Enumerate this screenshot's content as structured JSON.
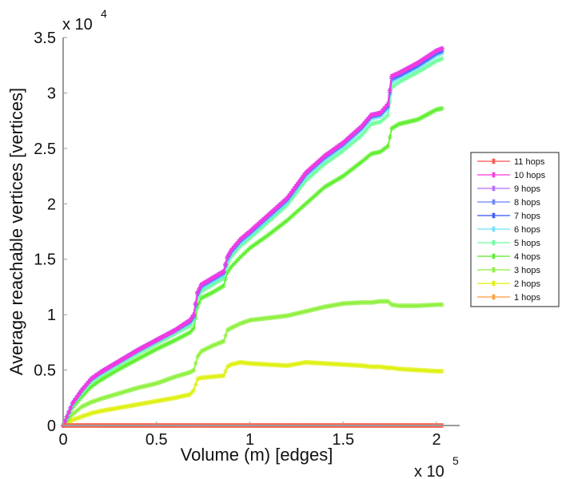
{
  "chart_data": {
    "type": "line",
    "title": "",
    "xlabel": "Volume (m) [edges]",
    "ylabel": "Average reachable vertices [vertices]",
    "x_multiplier_label": "x 10",
    "x_multiplier_exp": "5",
    "y_multiplier_label": "x 10",
    "y_multiplier_exp": "4",
    "xlim": [
      0,
      2.1
    ],
    "ylim": [
      0,
      3.5
    ],
    "xticks": [
      0,
      0.5,
      1,
      1.5,
      2
    ],
    "xtick_labels": [
      "0",
      "0.5",
      "1",
      "1.5",
      "2"
    ],
    "yticks": [
      0,
      0.5,
      1,
      1.5,
      2,
      2.5,
      3,
      3.5
    ],
    "ytick_labels": [
      "0",
      "0.5",
      "1",
      "1.5",
      "2",
      "2.5",
      "3",
      "3.5"
    ],
    "grid": false,
    "legend_position": "right",
    "marker": "asterisk",
    "x": [
      0,
      0.02,
      0.05,
      0.1,
      0.15,
      0.2,
      0.3,
      0.4,
      0.5,
      0.6,
      0.68,
      0.7,
      0.72,
      0.74,
      0.8,
      0.86,
      0.88,
      0.9,
      0.95,
      1.0,
      1.1,
      1.2,
      1.3,
      1.4,
      1.5,
      1.6,
      1.65,
      1.7,
      1.74,
      1.76,
      1.8,
      1.9,
      2.0,
      2.03
    ],
    "series": [
      {
        "name": "11 hops",
        "color": "#ff4d4d",
        "values": [
          0,
          0,
          0,
          0,
          0,
          0,
          0,
          0,
          0,
          0,
          0,
          0,
          0,
          0,
          0,
          0,
          0,
          0,
          0,
          0,
          0,
          0,
          0,
          0,
          0,
          0,
          0,
          0,
          0,
          0,
          0,
          0,
          0,
          0
        ]
      },
      {
        "name": "10 hops",
        "color": "#ff33dd",
        "values": [
          0,
          0.08,
          0.2,
          0.32,
          0.42,
          0.48,
          0.58,
          0.68,
          0.77,
          0.86,
          0.95,
          1.0,
          1.2,
          1.27,
          1.33,
          1.39,
          1.52,
          1.58,
          1.68,
          1.75,
          1.9,
          2.05,
          2.28,
          2.43,
          2.55,
          2.7,
          2.8,
          2.82,
          2.9,
          3.15,
          3.18,
          3.27,
          3.38,
          3.4
        ]
      },
      {
        "name": "9 hops",
        "color": "#b366ff",
        "values": [
          0,
          0.08,
          0.2,
          0.32,
          0.42,
          0.48,
          0.58,
          0.68,
          0.77,
          0.86,
          0.95,
          1.0,
          1.2,
          1.27,
          1.33,
          1.39,
          1.52,
          1.58,
          1.68,
          1.75,
          1.9,
          2.05,
          2.28,
          2.43,
          2.55,
          2.7,
          2.8,
          2.82,
          2.9,
          3.15,
          3.18,
          3.27,
          3.38,
          3.4
        ]
      },
      {
        "name": "8 hops",
        "color": "#6680ff",
        "values": [
          0,
          0.08,
          0.2,
          0.32,
          0.42,
          0.48,
          0.58,
          0.68,
          0.77,
          0.86,
          0.95,
          1.0,
          1.2,
          1.27,
          1.33,
          1.39,
          1.52,
          1.58,
          1.68,
          1.75,
          1.9,
          2.05,
          2.28,
          2.43,
          2.55,
          2.7,
          2.8,
          2.82,
          2.9,
          3.15,
          3.18,
          3.27,
          3.38,
          3.4
        ]
      },
      {
        "name": "7 hops",
        "color": "#3355ff",
        "values": [
          0,
          0.08,
          0.2,
          0.32,
          0.42,
          0.48,
          0.58,
          0.68,
          0.77,
          0.86,
          0.94,
          0.99,
          1.19,
          1.26,
          1.32,
          1.38,
          1.51,
          1.57,
          1.67,
          1.74,
          1.89,
          2.04,
          2.27,
          2.42,
          2.54,
          2.69,
          2.79,
          2.81,
          2.88,
          3.13,
          3.16,
          3.25,
          3.36,
          3.38
        ]
      },
      {
        "name": "6 hops",
        "color": "#66e0ff",
        "values": [
          0,
          0.07,
          0.19,
          0.31,
          0.41,
          0.47,
          0.57,
          0.67,
          0.76,
          0.85,
          0.93,
          0.98,
          1.17,
          1.24,
          1.3,
          1.36,
          1.49,
          1.55,
          1.65,
          1.72,
          1.87,
          2.02,
          2.25,
          2.4,
          2.52,
          2.67,
          2.77,
          2.79,
          2.86,
          3.1,
          3.14,
          3.23,
          3.34,
          3.36
        ]
      },
      {
        "name": "5 hops",
        "color": "#66ff99",
        "values": [
          0,
          0.07,
          0.18,
          0.29,
          0.39,
          0.45,
          0.55,
          0.65,
          0.74,
          0.83,
          0.9,
          0.95,
          1.14,
          1.21,
          1.27,
          1.33,
          1.45,
          1.52,
          1.62,
          1.69,
          1.84,
          1.99,
          2.21,
          2.36,
          2.48,
          2.62,
          2.72,
          2.74,
          2.8,
          3.05,
          3.1,
          3.19,
          3.29,
          3.31
        ]
      },
      {
        "name": "4 hops",
        "color": "#55ee22",
        "values": [
          0,
          0.06,
          0.16,
          0.26,
          0.35,
          0.41,
          0.51,
          0.6,
          0.69,
          0.77,
          0.84,
          0.88,
          1.07,
          1.15,
          1.2,
          1.26,
          1.38,
          1.43,
          1.52,
          1.6,
          1.72,
          1.85,
          2.0,
          2.15,
          2.25,
          2.38,
          2.45,
          2.47,
          2.52,
          2.68,
          2.72,
          2.76,
          2.85,
          2.86
        ]
      },
      {
        "name": "3 hops",
        "color": "#88f033",
        "values": [
          0,
          0.04,
          0.1,
          0.17,
          0.21,
          0.24,
          0.29,
          0.34,
          0.38,
          0.44,
          0.48,
          0.5,
          0.62,
          0.67,
          0.72,
          0.76,
          0.86,
          0.88,
          0.92,
          0.95,
          0.97,
          0.99,
          1.03,
          1.07,
          1.1,
          1.11,
          1.11,
          1.12,
          1.12,
          1.09,
          1.08,
          1.08,
          1.09,
          1.09
        ]
      },
      {
        "name": "2 hops",
        "color": "#ddf000",
        "values": [
          0,
          0.02,
          0.05,
          0.08,
          0.11,
          0.13,
          0.16,
          0.19,
          0.22,
          0.25,
          0.28,
          0.32,
          0.42,
          0.43,
          0.44,
          0.45,
          0.53,
          0.55,
          0.57,
          0.56,
          0.55,
          0.54,
          0.57,
          0.56,
          0.55,
          0.54,
          0.53,
          0.53,
          0.52,
          0.52,
          0.51,
          0.5,
          0.49,
          0.49
        ]
      },
      {
        "name": "1 hops",
        "color": "#ff9933",
        "values": [
          0,
          0,
          0,
          0,
          0,
          0,
          0,
          0,
          0,
          0,
          0,
          0,
          0,
          0,
          0,
          0,
          0,
          0,
          0,
          0,
          0,
          0,
          0,
          0,
          0,
          0,
          0,
          0,
          0,
          0,
          0,
          0,
          0,
          0
        ]
      }
    ]
  }
}
